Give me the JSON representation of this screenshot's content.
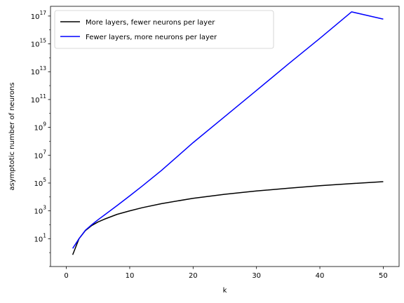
{
  "chart_data": {
    "type": "line",
    "xlabel": "k",
    "ylabel": "asymptotic number of neurons",
    "xlim": [
      -2.5,
      52.5
    ],
    "ylim": [
      0.1,
      5e+17
    ],
    "yscale": "log",
    "grid": false,
    "legend_position": "top-left",
    "x_ticks": [
      {
        "value": 0,
        "label": "0"
      },
      {
        "value": 10,
        "label": "10"
      },
      {
        "value": 20,
        "label": "20"
      },
      {
        "value": 30,
        "label": "30"
      },
      {
        "value": 40,
        "label": "40"
      },
      {
        "value": 50,
        "label": "50"
      }
    ],
    "y_ticks": [
      {
        "value": 10,
        "base": "10",
        "exp": "1"
      },
      {
        "value": 1000,
        "base": "10",
        "exp": "3"
      },
      {
        "value": 100000,
        "base": "10",
        "exp": "5"
      },
      {
        "value": 10000000,
        "base": "10",
        "exp": "7"
      },
      {
        "value": 1000000000,
        "base": "10",
        "exp": "9"
      },
      {
        "value": 100000000000,
        "base": "10",
        "exp": "11"
      },
      {
        "value": 10000000000000,
        "base": "10",
        "exp": "13"
      },
      {
        "value": 1000000000000000,
        "base": "10",
        "exp": "15"
      },
      {
        "value": 100000000000000000,
        "base": "10",
        "exp": "17"
      }
    ],
    "series": [
      {
        "name": "More layers, fewer neurons per layer",
        "color": "#000000",
        "x": [
          1,
          2,
          3,
          4,
          5,
          6,
          8,
          10,
          12,
          15,
          20,
          25,
          30,
          35,
          40,
          45,
          50
        ],
        "y": [
          0.7,
          10,
          38,
          88,
          160,
          252,
          560,
          1000,
          1700,
          3300,
          8000,
          15600,
          27000,
          42000,
          64000,
          91000,
          125000
        ]
      },
      {
        "name": "Fewer layers, more neurons per layer",
        "color": "#0000ff",
        "x": [
          1,
          2,
          3,
          4,
          5,
          6,
          8,
          10,
          12,
          15,
          20,
          25,
          30,
          35,
          40,
          45,
          50
        ],
        "y": [
          2,
          10,
          40,
          100,
          230,
          500,
          2400,
          12000,
          62000,
          800000,
          80000000,
          6000000000,
          450000000000,
          35000000000000,
          2500000000000000,
          2e+17,
          6e+16
        ]
      }
    ]
  }
}
